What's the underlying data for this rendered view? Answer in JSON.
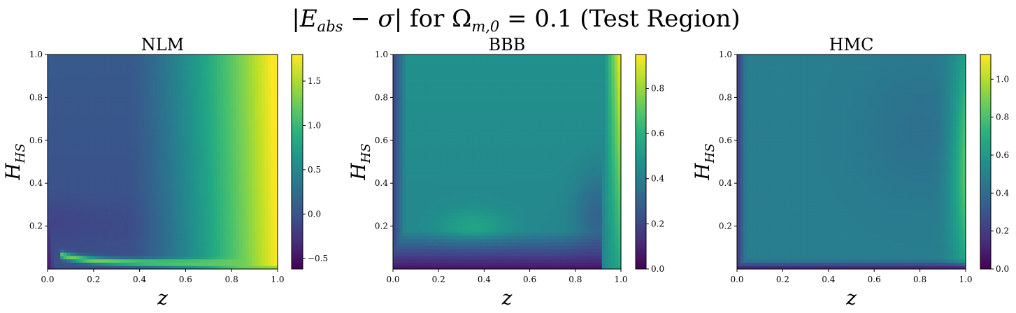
{
  "figure": {
    "title": "|E_abs − σ| for Ω_m,0 = 0.1 (Test Region)",
    "title_parts": {
      "abs_open": "|",
      "E": "E",
      "E_sub": "abs",
      "minus_sigma": " − σ|",
      "for_text": " for ",
      "Omega": "Ω",
      "Omega_sub": "m,0",
      "eq_value": " = 0.1 ",
      "region": "(Test Region)"
    }
  },
  "chart_data": [
    {
      "type": "heatmap",
      "title": "NLM",
      "xlabel": "z",
      "ylabel": "H",
      "ylabel_sub": "HS",
      "xlim": [
        0.0,
        1.0
      ],
      "ylim": [
        0.0,
        1.0
      ],
      "xticks": [
        "0.0",
        "0.2",
        "0.4",
        "0.6",
        "0.8",
        "1.0"
      ],
      "yticks": [
        "0.2",
        "0.4",
        "0.6",
        "0.8",
        "1.0"
      ],
      "colormap": "viridis",
      "colorbar": {
        "min": -0.62,
        "max": 1.8,
        "ticks": [
          "−0.5",
          "0.0",
          "0.5",
          "1.0",
          "1.5"
        ],
        "tick_values": [
          -0.5,
          0.0,
          0.5,
          1.0,
          1.5
        ]
      },
      "pattern": "nlm"
    },
    {
      "type": "heatmap",
      "title": "BBB",
      "xlabel": "z",
      "ylabel": "H",
      "ylabel_sub": "HS",
      "xlim": [
        0.0,
        1.0
      ],
      "ylim": [
        0.0,
        1.0
      ],
      "xticks": [
        "0.0",
        "0.2",
        "0.4",
        "0.6",
        "0.8",
        "1.0"
      ],
      "yticks": [
        "0.2",
        "0.4",
        "0.6",
        "0.8",
        "1.0"
      ],
      "colormap": "viridis",
      "colorbar": {
        "min": 0.0,
        "max": 0.95,
        "ticks": [
          "0.0",
          "0.2",
          "0.4",
          "0.6",
          "0.8"
        ],
        "tick_values": [
          0.0,
          0.2,
          0.4,
          0.6,
          0.8
        ]
      },
      "pattern": "bbb"
    },
    {
      "type": "heatmap",
      "title": "HMC",
      "xlabel": "z",
      "ylabel": "H",
      "ylabel_sub": "HS",
      "xlim": [
        0.0,
        1.0
      ],
      "ylim": [
        0.0,
        1.0
      ],
      "xticks": [
        "0.0",
        "0.2",
        "0.4",
        "0.6",
        "0.8",
        "1.0"
      ],
      "yticks": [
        "0.2",
        "0.4",
        "0.6",
        "0.8",
        "1.0"
      ],
      "colormap": "viridis",
      "colorbar": {
        "min": 0.0,
        "max": 1.13,
        "ticks": [
          "0.0",
          "0.2",
          "0.4",
          "0.6",
          "0.8",
          "1.0"
        ],
        "tick_values": [
          0.0,
          0.2,
          0.4,
          0.6,
          0.8,
          1.0
        ]
      },
      "pattern": "hmc"
    }
  ]
}
